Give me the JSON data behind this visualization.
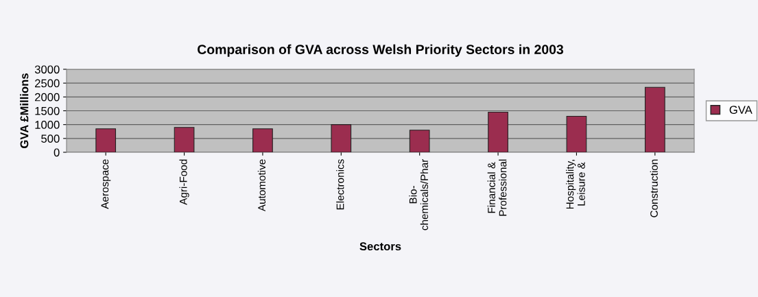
{
  "chart_data": {
    "type": "bar",
    "title": "Comparison of GVA across Welsh Priority Sectors in 2003",
    "xlabel": "Sectors",
    "ylabel": "GVA £Millions",
    "categories": [
      "Aerospace",
      "Agri-Food",
      "Automotive",
      "Electronics",
      "Bio-\nchemicals/Phar",
      "Financial &\nProfessional",
      "Hospitality,\nLeisure &",
      "Construction"
    ],
    "series": [
      {
        "name": "GVA",
        "color": "#9b2d4f",
        "values": [
          850,
          900,
          850,
          1000,
          800,
          1450,
          1300,
          2350
        ]
      }
    ],
    "ylim": [
      0,
      3000
    ],
    "yticks": [
      0,
      500,
      1000,
      1500,
      2000,
      2500,
      3000
    ],
    "grid": "y",
    "legend": "right"
  }
}
